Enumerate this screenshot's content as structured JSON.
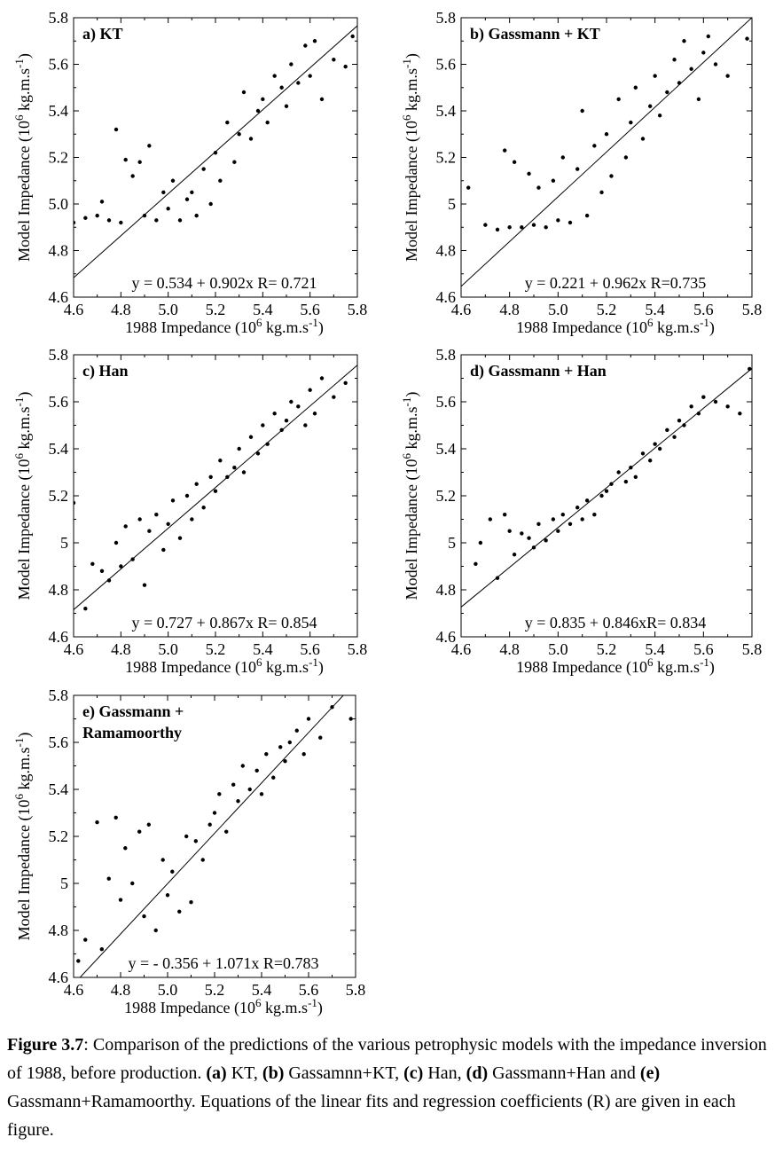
{
  "chart_data": [
    {
      "type": "scatter",
      "title": "a) KT",
      "xlabel": "1988 Impedance (10^6 kg.m.s^-1)",
      "ylabel": "Model Impedance (10^6 kg.m.s^-1)",
      "xlim": [
        4.6,
        5.8
      ],
      "ylim": [
        4.6,
        5.8
      ],
      "x_ticks": [
        "4.6",
        "4.8",
        "5.0",
        "5.2",
        "5.4",
        "5.6",
        "5.8"
      ],
      "y_ticks": [
        "4.6",
        "4.8",
        "5.0",
        "5.2",
        "5.4",
        "5.6",
        "5.8"
      ],
      "fit": {
        "intercept": 0.534,
        "slope": 0.902
      },
      "equation": "y = 0.534 + 0.902x   R= 0.721",
      "grid": false,
      "points": {
        "x": [
          4.6,
          4.65,
          4.7,
          4.72,
          4.75,
          4.78,
          4.8,
          4.82,
          4.85,
          4.88,
          4.9,
          4.92,
          4.95,
          4.98,
          5.0,
          5.02,
          5.05,
          5.08,
          5.1,
          5.12,
          5.15,
          5.18,
          5.2,
          5.22,
          5.25,
          5.28,
          5.3,
          5.32,
          5.35,
          5.38,
          5.4,
          5.42,
          5.45,
          5.48,
          5.5,
          5.52,
          5.55,
          5.58,
          5.6,
          5.62,
          5.65,
          5.7,
          5.75,
          5.78
        ],
        "y": [
          4.92,
          4.94,
          4.95,
          5.01,
          4.93,
          5.32,
          4.92,
          5.19,
          5.12,
          5.18,
          4.95,
          5.25,
          4.93,
          5.05,
          4.98,
          5.1,
          4.93,
          5.02,
          5.05,
          4.95,
          5.15,
          5.0,
          5.22,
          5.1,
          5.35,
          5.18,
          5.3,
          5.48,
          5.28,
          5.4,
          5.45,
          5.35,
          5.55,
          5.5,
          5.42,
          5.6,
          5.52,
          5.68,
          5.55,
          5.7,
          5.45,
          5.62,
          5.59,
          5.72
        ]
      }
    },
    {
      "type": "scatter",
      "title": "b) Gassmann + KT",
      "xlabel": "1988 Impedance (10^6 kg.m.s^-1)",
      "ylabel": "Model Impedance (10^6 kg.m.s^-1)",
      "xlim": [
        4.6,
        5.8
      ],
      "ylim": [
        4.6,
        5.8
      ],
      "x_ticks": [
        "4.6",
        "4.8",
        "5.0",
        "5.2",
        "5.4",
        "5.6",
        "5.8"
      ],
      "y_ticks": [
        "4.6",
        "4.8",
        "5",
        "5.2",
        "5.4",
        "5.6",
        "5.8"
      ],
      "fit": {
        "intercept": 0.221,
        "slope": 0.962
      },
      "equation": "y = 0.221 + 0.962x   R=0.735",
      "grid": false,
      "points": {
        "x": [
          4.63,
          4.7,
          4.75,
          4.78,
          4.8,
          4.82,
          4.85,
          4.88,
          4.9,
          4.92,
          4.95,
          4.98,
          5.0,
          5.02,
          5.05,
          5.08,
          5.1,
          5.12,
          5.15,
          5.18,
          5.2,
          5.22,
          5.25,
          5.28,
          5.3,
          5.32,
          5.35,
          5.38,
          5.4,
          5.42,
          5.45,
          5.48,
          5.5,
          5.52,
          5.55,
          5.58,
          5.6,
          5.62,
          5.65,
          5.7,
          5.78
        ],
        "y": [
          5.07,
          4.91,
          4.89,
          5.23,
          4.9,
          5.18,
          4.9,
          5.13,
          4.91,
          5.07,
          4.9,
          5.1,
          4.93,
          5.2,
          4.92,
          5.15,
          5.4,
          4.95,
          5.25,
          5.05,
          5.3,
          5.12,
          5.45,
          5.2,
          5.35,
          5.5,
          5.28,
          5.42,
          5.55,
          5.38,
          5.48,
          5.62,
          5.52,
          5.7,
          5.58,
          5.45,
          5.65,
          5.72,
          5.6,
          5.55,
          5.71
        ]
      }
    },
    {
      "type": "scatter",
      "title": "c) Han",
      "xlabel": "1988 Impedance (10^6 kg.m.s^-1)",
      "ylabel": "Model Impedance (10^6 kg.m.s^-1)",
      "xlim": [
        4.6,
        5.8
      ],
      "ylim": [
        4.6,
        5.8
      ],
      "x_ticks": [
        "4.6",
        "4.8",
        "5.0",
        "5.2",
        "5.4",
        "5.6",
        "5.8"
      ],
      "y_ticks": [
        "4.6",
        "4.8",
        "5",
        "5.2",
        "5.4",
        "5.6",
        "5.8"
      ],
      "fit": {
        "intercept": 0.727,
        "slope": 0.867
      },
      "equation": "y = 0.727 + 0.867x  R= 0.854",
      "grid": false,
      "points": {
        "x": [
          4.6,
          4.65,
          4.68,
          4.72,
          4.75,
          4.78,
          4.8,
          4.82,
          4.85,
          4.88,
          4.9,
          4.92,
          4.95,
          4.98,
          5.0,
          5.02,
          5.05,
          5.08,
          5.1,
          5.12,
          5.15,
          5.18,
          5.2,
          5.22,
          5.25,
          5.28,
          5.3,
          5.32,
          5.35,
          5.38,
          5.4,
          5.42,
          5.45,
          5.48,
          5.5,
          5.52,
          5.55,
          5.58,
          5.6,
          5.62,
          5.65,
          5.7,
          5.75
        ],
        "y": [
          5.17,
          4.72,
          4.91,
          4.88,
          4.84,
          5.0,
          4.9,
          5.07,
          4.93,
          5.1,
          4.82,
          5.05,
          5.12,
          4.97,
          5.08,
          5.18,
          5.02,
          5.2,
          5.1,
          5.25,
          5.15,
          5.28,
          5.22,
          5.35,
          5.28,
          5.32,
          5.4,
          5.3,
          5.45,
          5.38,
          5.5,
          5.42,
          5.55,
          5.48,
          5.52,
          5.6,
          5.58,
          5.5,
          5.65,
          5.55,
          5.7,
          5.62,
          5.68
        ]
      }
    },
    {
      "type": "scatter",
      "title": "d) Gassmann + Han",
      "xlabel": "1988 Impedance (10^6 kg.m.s^-1)",
      "ylabel": "Model Impedance (10^6 kg.m.s^-1)",
      "xlim": [
        4.6,
        5.8
      ],
      "ylim": [
        4.6,
        5.8
      ],
      "x_ticks": [
        "4.6",
        "4.8",
        "5.0",
        "5.2",
        "5.4",
        "5.6",
        "5.8"
      ],
      "y_ticks": [
        "4.6",
        "4.8",
        "5",
        "5.2",
        "5.4",
        "5.6",
        "5.8"
      ],
      "fit": {
        "intercept": 0.835,
        "slope": 0.846
      },
      "equation": "y = 0.835 + 0.846xR= 0.834",
      "grid": false,
      "points": {
        "x": [
          4.66,
          4.68,
          4.72,
          4.75,
          4.78,
          4.8,
          4.82,
          4.85,
          4.88,
          4.9,
          4.92,
          4.95,
          4.98,
          5.0,
          5.02,
          5.05,
          5.08,
          5.1,
          5.12,
          5.15,
          5.18,
          5.2,
          5.22,
          5.25,
          5.28,
          5.3,
          5.32,
          5.35,
          5.38,
          5.4,
          5.42,
          5.45,
          5.48,
          5.5,
          5.52,
          5.55,
          5.58,
          5.6,
          5.65,
          5.7,
          5.75,
          5.79
        ],
        "y": [
          4.91,
          5.0,
          5.1,
          4.85,
          5.12,
          5.05,
          4.95,
          5.04,
          5.02,
          4.98,
          5.08,
          5.01,
          5.1,
          5.05,
          5.12,
          5.08,
          5.15,
          5.1,
          5.18,
          5.12,
          5.2,
          5.22,
          5.25,
          5.3,
          5.26,
          5.32,
          5.28,
          5.38,
          5.35,
          5.42,
          5.4,
          5.48,
          5.45,
          5.52,
          5.5,
          5.58,
          5.55,
          5.62,
          5.6,
          5.58,
          5.55,
          5.74
        ]
      }
    },
    {
      "type": "scatter",
      "title": "e) Gassmann + Ramamoorthy",
      "xlabel": "1988 Impedance (10^6 kg.m.s^-1)",
      "ylabel": "Model Impedance (10^6 kg.m.s^-1)",
      "xlim": [
        4.6,
        5.8
      ],
      "ylim": [
        4.6,
        5.8
      ],
      "x_ticks": [
        "4.6",
        "4.8",
        "5.0",
        "5.2",
        "5.4",
        "5.6",
        "5.8"
      ],
      "y_ticks": [
        "4.6",
        "4.8",
        "5",
        "5.2",
        "5.4",
        "5.6",
        "5.8"
      ],
      "fit": {
        "intercept": -0.356,
        "slope": 1.071
      },
      "equation": "y = - 0.356 + 1.071x  R=0.783",
      "grid": false,
      "points": {
        "x": [
          4.62,
          4.65,
          4.7,
          4.72,
          4.75,
          4.78,
          4.8,
          4.82,
          4.85,
          4.88,
          4.9,
          4.92,
          4.95,
          4.98,
          5.0,
          5.02,
          5.05,
          5.08,
          5.1,
          5.12,
          5.15,
          5.18,
          5.2,
          5.22,
          5.25,
          5.28,
          5.3,
          5.32,
          5.35,
          5.38,
          5.4,
          5.42,
          5.45,
          5.48,
          5.5,
          5.52,
          5.55,
          5.58,
          5.6,
          5.65,
          5.7,
          5.78
        ],
        "y": [
          4.67,
          4.76,
          5.26,
          4.72,
          5.02,
          5.28,
          4.93,
          5.15,
          5.0,
          5.22,
          4.86,
          5.25,
          4.8,
          5.1,
          4.95,
          5.05,
          4.88,
          5.2,
          4.92,
          5.18,
          5.1,
          5.25,
          5.3,
          5.38,
          5.22,
          5.42,
          5.35,
          5.5,
          5.4,
          5.48,
          5.38,
          5.55,
          5.45,
          5.58,
          5.52,
          5.6,
          5.65,
          5.55,
          5.7,
          5.62,
          5.75,
          5.7
        ]
      }
    }
  ],
  "caption": {
    "label": "Figure 3.7",
    "text_1": ": Comparison of the predictions of the various petrophysic models with the impedance inversion of 1988, before production. ",
    "a": "(a)",
    "a_txt": " KT, ",
    "b": "(b)",
    "b_txt": " Gassamnn+KT, ",
    "c": "(c)",
    "c_txt": " Han, ",
    "d": "(d)",
    "d_txt": " Gassmann+Han and ",
    "e": "(e)",
    "e_txt": " Gassmann+Ramamoorthy. Equations of the linear fits and regression coefficients (R) are given in each figure."
  },
  "colors": {
    "ink": "#000000",
    "background": "#ffffff"
  }
}
